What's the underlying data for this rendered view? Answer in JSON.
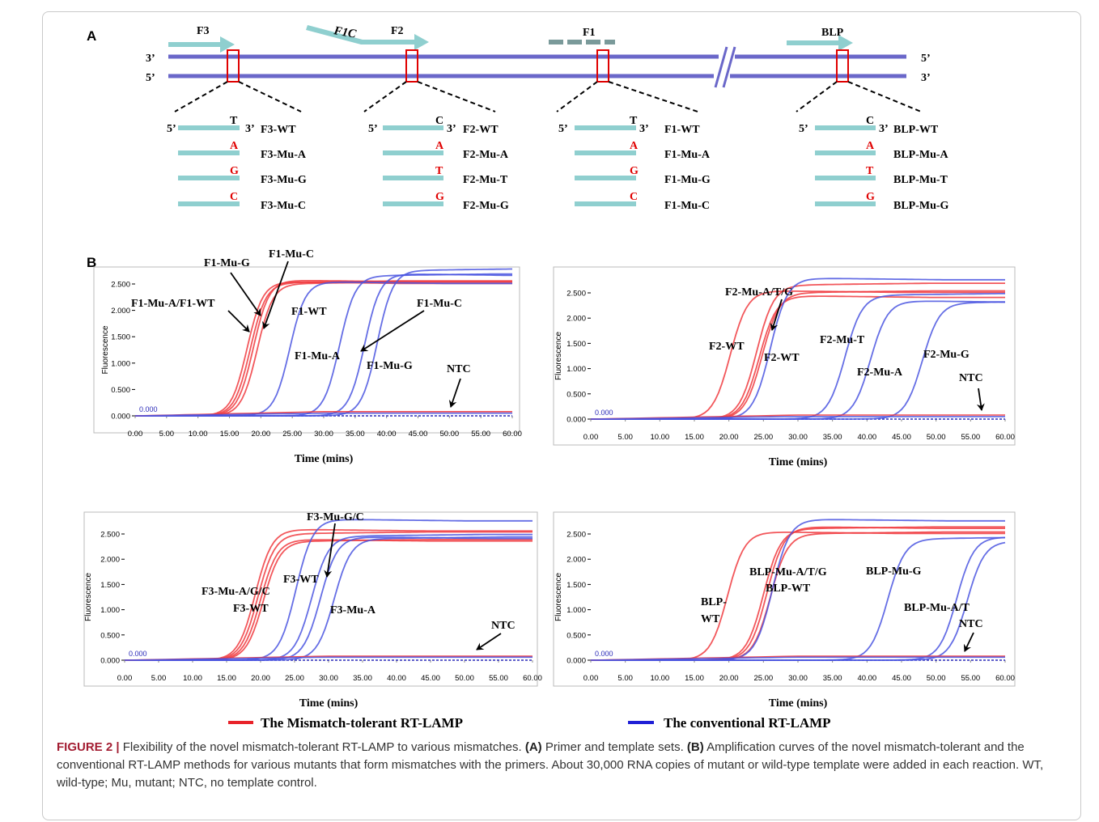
{
  "panel_labels": {
    "a": "A",
    "b": "B"
  },
  "diagram": {
    "primers": {
      "F3": "F3",
      "F1C": "F1C",
      "F2": "F2",
      "F1": "F1",
      "BLP": "BLP"
    },
    "strand_ends": {
      "top_left": "3’",
      "bottom_left": "5’",
      "top_right": "5’",
      "bottom_right": "3’",
      "five": "5’",
      "three": "3’"
    },
    "groups": [
      {
        "id": "f3",
        "wt_base": "T",
        "mut_bases": [
          "A",
          "G",
          "C"
        ],
        "names": [
          "F3-WT",
          "F3-Mu-A",
          "F3-Mu-G",
          "F3-Mu-C"
        ]
      },
      {
        "id": "f2",
        "wt_base": "C",
        "mut_bases": [
          "A",
          "T",
          "G"
        ],
        "names": [
          "F2-WT",
          "F2-Mu-A",
          "F2-Mu-T",
          "F2-Mu-G"
        ]
      },
      {
        "id": "f1",
        "wt_base": "T",
        "mut_bases": [
          "A",
          "G",
          "C"
        ],
        "names": [
          "F1-WT",
          "F1-Mu-A",
          "F1-Mu-G",
          "F1-Mu-C"
        ]
      },
      {
        "id": "blp",
        "wt_base": "C",
        "mut_bases": [
          "A",
          "T",
          "G"
        ],
        "names": [
          "BLP-WT",
          "BLP-Mu-A",
          "BLP-Mu-T",
          "BLP-Mu-G"
        ]
      }
    ],
    "colors": {
      "strand": "#6a67c9",
      "primer": "#8fcfcf",
      "mark": "#e00000",
      "f1_dash": "#7a9a9a"
    }
  },
  "chart_data": [
    {
      "type": "line",
      "id": "f1",
      "xlabel": "Time  (mins)",
      "ylabel": "Fluorescence",
      "xlim": [
        0,
        60
      ],
      "ylim": [
        0,
        2.6
      ],
      "x_ticks": [
        "0.00",
        "5.00",
        "10.00",
        "15.00",
        "20.00",
        "25.00",
        "30.00",
        "35.00",
        "40.00",
        "45.00",
        "50.00",
        "55.00",
        "60.00"
      ],
      "y_ticks": [
        "0.000",
        "0.500",
        "1.000",
        "1.500",
        "2.000",
        "2.500"
      ],
      "origin_label": "0.000",
      "series": [
        {
          "color": "red",
          "midpoints": [
            17.8,
            18.3,
            18.8,
            19.4
          ],
          "plateaus": [
            2.55,
            2.52,
            2.58,
            2.5
          ]
        },
        {
          "color": "blue",
          "midpoints": [
            24.6,
            32.5,
            36.5,
            38.5
          ],
          "plateaus": [
            2.55,
            2.65,
            2.7,
            2.75
          ]
        },
        {
          "color": "red_ntc",
          "level": 0.08
        },
        {
          "color": "blue_ntc",
          "level": 0.05
        }
      ],
      "annotations": [
        "F1-Mu-G",
        "F1-Mu-C",
        "F1-Mu-A/F1-WT",
        "F1-WT",
        "F1-Mu-C",
        "F1-Mu-A",
        "F1-Mu-G",
        "NTC"
      ]
    },
    {
      "type": "line",
      "id": "f2",
      "xlabel": "Time  (mins)",
      "ylabel": "Fluorescence",
      "xlim": [
        0,
        60
      ],
      "ylim": [
        0,
        2.6
      ],
      "x_ticks": [
        "0.00",
        "5.00",
        "10.00",
        "15.00",
        "20.00",
        "25.00",
        "30.00",
        "35.00",
        "40.00",
        "45.00",
        "50.00",
        "55.00",
        "60.00"
      ],
      "y_ticks": [
        "0.000",
        "0.500",
        "1.000",
        "1.500",
        "2.000",
        "2.500"
      ],
      "origin_label": "0.000",
      "series": [
        {
          "color": "red",
          "midpoints": [
            20.2,
            24.0,
            24.4,
            24.8
          ],
          "plateaus": [
            2.55,
            2.65,
            2.45,
            2.5
          ]
        },
        {
          "color": "blue",
          "midpoints": [
            26.0,
            36.8,
            40.5,
            48.0
          ],
          "plateaus": [
            2.8,
            2.45,
            2.35,
            2.3
          ]
        },
        {
          "color": "red_ntc",
          "level": 0.08
        },
        {
          "color": "blue_ntc",
          "level": 0.05
        }
      ],
      "annotations": [
        "F2-Mu-A/T/G",
        "F2-WT",
        "F2-WT",
        "F2-Mu-T",
        "F2-Mu-A",
        "F2-Mu-G",
        "NTC"
      ]
    },
    {
      "type": "line",
      "id": "f3",
      "xlabel": "Time  (mins)",
      "ylabel": "Fluorescence",
      "xlim": [
        0,
        60
      ],
      "ylim": [
        0,
        2.6
      ],
      "x_ticks": [
        "0.00",
        "5.00",
        "10.00",
        "15.00",
        "20.00",
        "25.00",
        "30.00",
        "35.00",
        "40.00",
        "45.00",
        "50.00",
        "55.00",
        "60.00"
      ],
      "y_ticks": [
        "0.000",
        "0.500",
        "1.000",
        "1.500",
        "2.000",
        "2.500"
      ],
      "origin_label": "0.000",
      "series": [
        {
          "color": "red",
          "midpoints": [
            19.2,
            19.6,
            20.0,
            20.4
          ],
          "plateaus": [
            2.6,
            2.5,
            2.4,
            2.35
          ]
        },
        {
          "color": "blue",
          "midpoints": [
            25.2,
            27.5,
            28.8,
            30.8
          ],
          "plateaus": [
            2.8,
            2.45,
            2.45,
            2.4
          ]
        },
        {
          "color": "red_ntc",
          "level": 0.08
        },
        {
          "color": "blue_ntc",
          "level": 0.06
        }
      ],
      "annotations": [
        "F3-Mu-G/C",
        "F3-Mu-A/G/C",
        "F3-WT",
        "F3-WT",
        "F3-Mu-A",
        "NTC"
      ]
    },
    {
      "type": "line",
      "id": "blp",
      "xlabel": "Time  (mins)",
      "ylabel": "Fluorescence",
      "xlim": [
        0,
        60
      ],
      "ylim": [
        0,
        2.6
      ],
      "x_ticks": [
        "0.00",
        "5.00",
        "10.00",
        "15.00",
        "20.00",
        "25.00",
        "30.00",
        "35.00",
        "40.00",
        "45.00",
        "50.00",
        "55.00",
        "60.00"
      ],
      "y_ticks": [
        "0.000",
        "0.500",
        "1.000",
        "1.500",
        "2.000",
        "2.500"
      ],
      "origin_label": "0.000",
      "series": [
        {
          "color": "red",
          "midpoints": [
            19.8,
            25.0,
            25.5,
            26.0
          ],
          "plateaus": [
            2.55,
            2.6,
            2.65,
            2.5
          ]
        },
        {
          "color": "blue",
          "midpoints": [
            26.3,
            43.0,
            53.0,
            54.5
          ],
          "plateaus": [
            2.8,
            2.4,
            2.45,
            2.35
          ]
        },
        {
          "color": "red_ntc",
          "level": 0.08
        },
        {
          "color": "blue_ntc",
          "level": 0.06
        }
      ],
      "annotations": [
        "BLP-",
        "WT",
        "BLP-Mu-A/T/G",
        "BLP-WT",
        "BLP-Mu-G",
        "BLP-Mu-A/T",
        "NTC"
      ]
    }
  ],
  "legend": {
    "red_label": "The Mismatch-tolerant RT-LAMP",
    "blue_label": "The conventional RT-LAMP",
    "red_color": "#e8232a",
    "blue_color": "#1f1fd6"
  },
  "caption": {
    "label": "FIGURE 2 |",
    "s1": " Flexibility of the novel mismatch-tolerant RT-LAMP to various mismatches. ",
    "a_ref": "(A)",
    "s2": " Primer and template sets. ",
    "b_ref": "(B)",
    "s3": " Amplification curves of the novel mismatch-tolerant and the conventional RT-LAMP methods for various mutants that form mismatches with the primers. About 30,000 RNA copies of mutant or wild-type template were added in each reaction. WT, wild-type; Mu, mutant; NTC, no template control."
  }
}
